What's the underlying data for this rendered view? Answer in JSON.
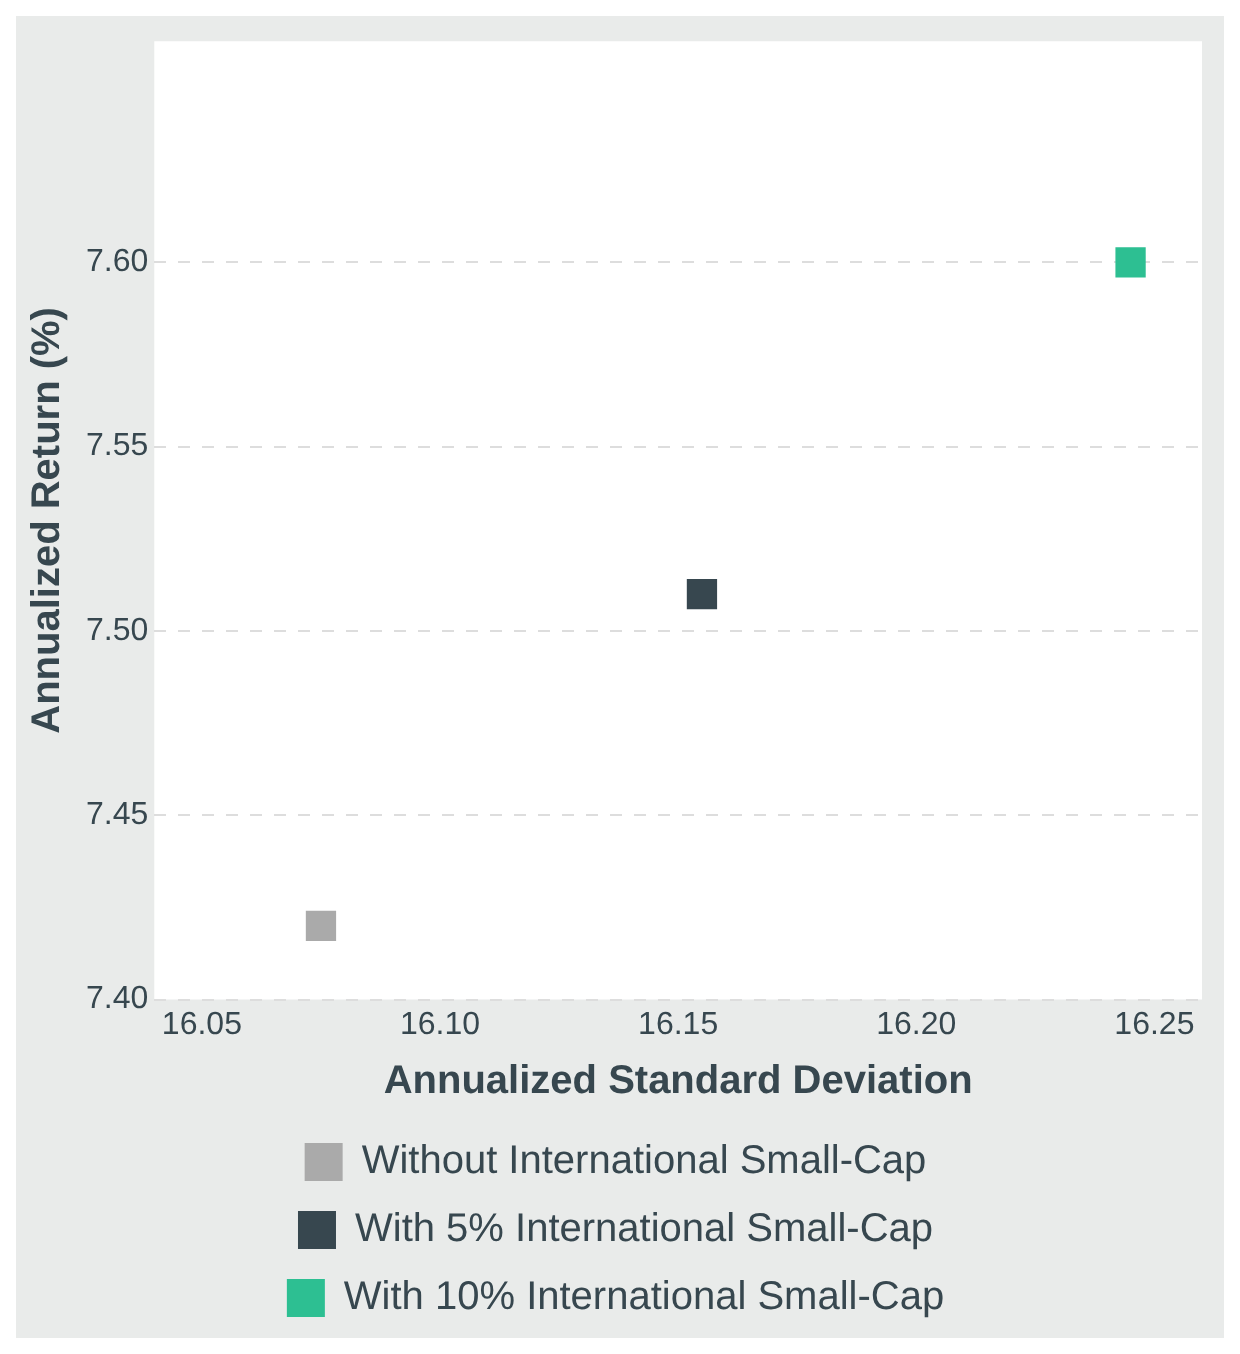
{
  "chart_data": {
    "type": "scatter",
    "xlabel": "Annualized Standard Deviation",
    "ylabel": "Annualized Return (%)",
    "series": [
      {
        "name": "Without International Small-Cap",
        "color": "#aaaaaa",
        "x": [
          16.075
        ],
        "values": [
          7.42
        ]
      },
      {
        "name": "With 5% International Small-Cap",
        "color": "#37474f",
        "x": [
          16.155
        ],
        "values": [
          7.51
        ]
      },
      {
        "name": "With 10% International Small-Cap",
        "color": "#2dbf92",
        "x": [
          16.245
        ],
        "values": [
          7.6
        ]
      }
    ],
    "xlim": [
      16.04,
      16.26
    ],
    "xticks": [
      {
        "value": 16.05,
        "label": "16.05"
      },
      {
        "value": 16.1,
        "label": "16.10"
      },
      {
        "value": 16.15,
        "label": "16.15"
      },
      {
        "value": 16.2,
        "label": "16.20"
      },
      {
        "value": 16.25,
        "label": "16.25"
      }
    ],
    "ylim": [
      7.4,
      7.66
    ],
    "yticks": [
      {
        "value": 7.4,
        "label": "7.40"
      },
      {
        "value": 7.45,
        "label": "7.45"
      },
      {
        "value": 7.5,
        "label": "7.50"
      },
      {
        "value": 7.55,
        "label": "7.55"
      },
      {
        "value": 7.6,
        "label": "7.60"
      }
    ],
    "grid": "y",
    "legend": "bottom",
    "marker": "square"
  }
}
